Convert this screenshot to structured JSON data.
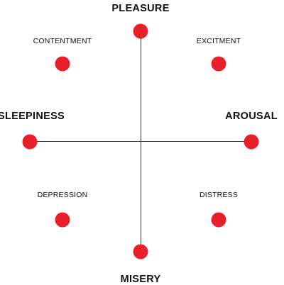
{
  "diagram": {
    "dot_color": "#e8202a",
    "axis_color": "#333333",
    "labels": {
      "pleasure": "PLEASURE",
      "misery": "MISERY",
      "sleepiness": "SLEEPINESS",
      "arousal": "AROUSAL",
      "contentment": "CONTENTMENT",
      "excitement": "EXCITMENT",
      "depression": "DEPRESSION",
      "distress": "DISTRESS"
    }
  }
}
